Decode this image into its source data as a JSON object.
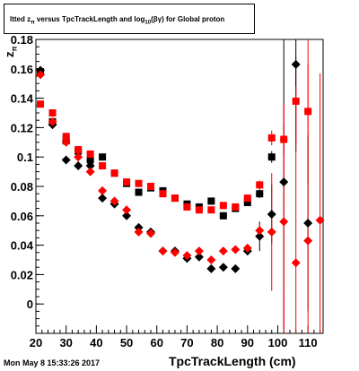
{
  "chart_data": {
    "type": "scatter",
    "title": {
      "prefix": "ltted z",
      "sub1": "π",
      "mid": " versus TpcTrackLength and log",
      "sub2": "10",
      "suffix": "(βγ) for Global proton"
    },
    "xlabel": "TpcTrackLength (cm)",
    "ylabel": {
      "main": "z",
      "sub": "π"
    },
    "timestamp": "Mon May  8 15:33:26 2017",
    "xlim": [
      20,
      115
    ],
    "ylim": [
      -0.02,
      0.18
    ],
    "xticks": [
      20,
      30,
      40,
      50,
      60,
      70,
      80,
      90,
      100,
      110
    ],
    "yticks": [
      0,
      0.02,
      0.04,
      0.06,
      0.08,
      0.1,
      0.12,
      0.14,
      0.16,
      0.18
    ],
    "ytick_labels": [
      "0",
      "0.02",
      "0.04",
      "0.06",
      "0.08",
      "0.1",
      "0.12",
      "0.14",
      "0.16",
      "0.18"
    ],
    "series": [
      {
        "color": "#000000",
        "marker": "square",
        "points": [
          [
            21.5,
            0.158
          ],
          [
            25.5,
            0.124
          ],
          [
            30,
            0.111
          ],
          [
            34,
            0.104
          ],
          [
            38,
            0.098
          ],
          [
            42,
            0.1
          ],
          [
            46,
            0.089
          ],
          [
            50,
            0.082
          ],
          [
            54,
            0.076
          ],
          [
            58,
            0.079
          ],
          [
            62,
            0.077
          ],
          [
            66,
            0.072
          ],
          [
            70,
            0.068
          ],
          [
            74,
            0.066
          ],
          [
            78,
            0.07
          ],
          [
            82,
            0.06
          ],
          [
            86,
            0.065
          ],
          [
            90,
            0.069
          ],
          [
            94,
            0.075
          ],
          [
            98,
            0.1
          ]
        ],
        "yerr": [
          0.002,
          0.002,
          0.002,
          0.002,
          0.002,
          0.002,
          0.002,
          0.002,
          0.002,
          0.002,
          0.002,
          0.002,
          0.002,
          0.002,
          0.002,
          0.002,
          0.002,
          0.002,
          0.003,
          0.004
        ]
      },
      {
        "color": "#ff0000",
        "marker": "square",
        "points": [
          [
            21.5,
            0.136
          ],
          [
            25.5,
            0.13
          ],
          [
            30,
            0.114
          ],
          [
            34,
            0.105
          ],
          [
            38,
            0.102
          ],
          [
            42,
            0.094
          ],
          [
            46,
            0.089
          ],
          [
            50,
            0.083
          ],
          [
            54,
            0.082
          ],
          [
            58,
            0.08
          ],
          [
            62,
            0.075
          ],
          [
            66,
            0.072
          ],
          [
            70,
            0.066
          ],
          [
            74,
            0.064
          ],
          [
            78,
            0.064
          ],
          [
            82,
            0.067
          ],
          [
            86,
            0.066
          ],
          [
            90,
            0.072
          ],
          [
            94,
            0.081
          ],
          [
            98,
            0.113
          ],
          [
            102,
            0.112
          ],
          [
            106,
            0.138
          ],
          [
            110,
            0.131
          ]
        ],
        "yerr": [
          0.002,
          0.002,
          0.002,
          0.002,
          0.002,
          0.002,
          0.002,
          0.002,
          0.002,
          0.002,
          0.002,
          0.002,
          0.002,
          0.002,
          0.002,
          0.002,
          0.002,
          0.002,
          0.003,
          0.005,
          0.01,
          0.03,
          0.05
        ]
      },
      {
        "color": "#000000",
        "marker": "diamond",
        "points": [
          [
            21.5,
            0.159
          ],
          [
            25.5,
            0.122
          ],
          [
            30,
            0.098
          ],
          [
            34,
            0.094
          ],
          [
            38,
            0.094
          ],
          [
            42,
            0.072
          ],
          [
            46,
            0.068
          ],
          [
            50,
            0.06
          ],
          [
            54,
            0.052
          ],
          [
            58,
            0.049
          ],
          [
            62,
            0.036
          ],
          [
            66,
            0.036
          ],
          [
            70,
            0.031
          ],
          [
            74,
            0.032
          ],
          [
            78,
            0.024
          ],
          [
            82,
            0.025
          ],
          [
            86,
            0.024
          ],
          [
            90,
            0.036
          ],
          [
            94,
            0.046
          ],
          [
            98,
            0.061
          ],
          [
            102,
            0.083
          ],
          [
            106,
            0.163
          ],
          [
            110,
            0.055
          ]
        ],
        "yerr": [
          0.002,
          0.002,
          0.002,
          0.002,
          0.002,
          0.002,
          0.002,
          0.002,
          0.002,
          0.002,
          0.002,
          0.002,
          0.002,
          0.002,
          0.002,
          0.002,
          0.002,
          0.003,
          0.01,
          0.02,
          0.1,
          0.06,
          0.06
        ]
      },
      {
        "color": "#ff0000",
        "marker": "diamond",
        "points": [
          [
            21.5,
            0.156
          ],
          [
            25.5,
            0.124
          ],
          [
            30,
            0.11
          ],
          [
            34,
            0.1
          ],
          [
            38,
            0.09
          ],
          [
            42,
            0.077
          ],
          [
            46,
            0.07
          ],
          [
            50,
            0.064
          ],
          [
            54,
            0.049
          ],
          [
            58,
            0.048
          ],
          [
            62,
            0.036
          ],
          [
            66,
            0.035
          ],
          [
            70,
            0.033
          ],
          [
            74,
            0.036
          ],
          [
            78,
            0.03
          ],
          [
            82,
            0.036
          ],
          [
            86,
            0.037
          ],
          [
            90,
            0.038
          ],
          [
            94,
            0.05
          ],
          [
            98,
            0.049
          ],
          [
            102,
            0.056
          ],
          [
            106,
            0.028
          ],
          [
            110,
            0.043
          ],
          [
            114,
            0.057
          ]
        ],
        "yerr": [
          0.002,
          0.002,
          0.002,
          0.002,
          0.002,
          0.002,
          0.002,
          0.002,
          0.002,
          0.002,
          0.002,
          0.002,
          0.002,
          0.002,
          0.002,
          0.002,
          0.002,
          0.003,
          0.005,
          0.04,
          0.08,
          0.12,
          0.12,
          0.1
        ]
      }
    ]
  }
}
